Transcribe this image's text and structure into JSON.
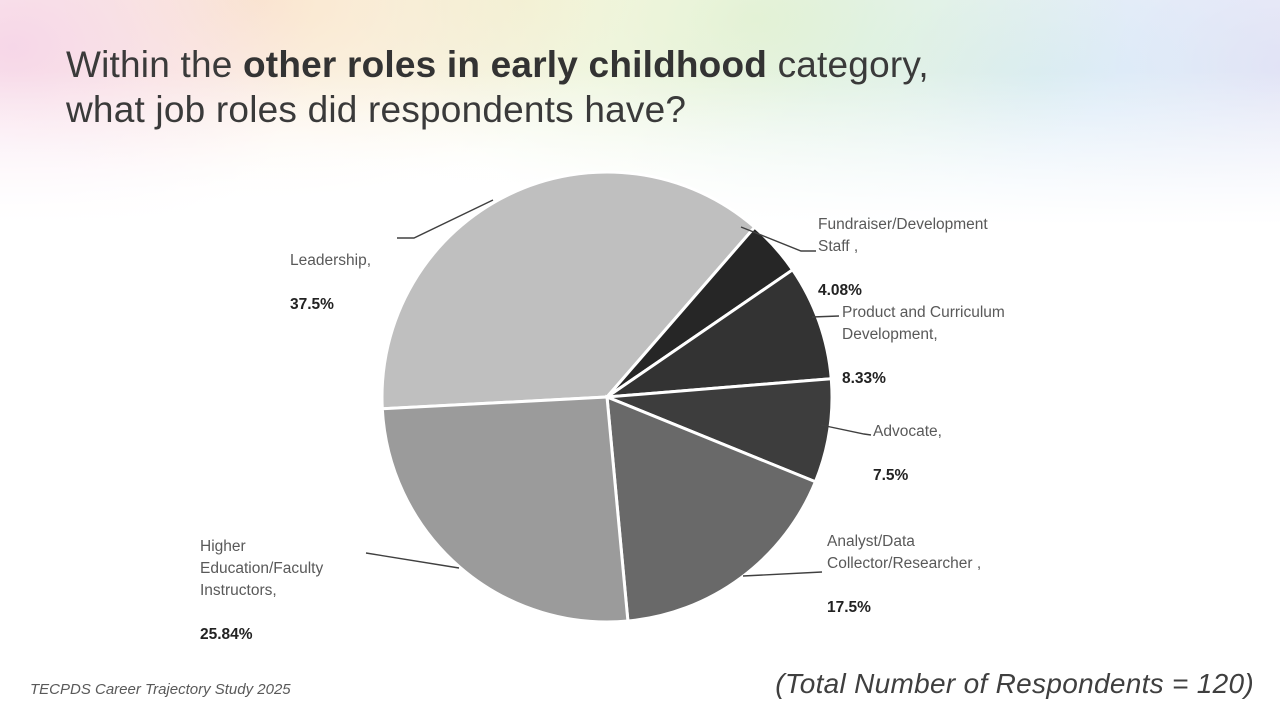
{
  "slide": {
    "title": {
      "prefix": "Within the ",
      "bold": "other roles in early childhood",
      "suffix": " category,",
      "line2": "what job roles did respondents have?"
    },
    "footer_left": "TECPDS Career Trajectory Study 2025",
    "footer_right": "(Total Number of Respondents = 120)"
  },
  "chart_data": {
    "type": "pie",
    "title": "Job roles within the other roles in early childhood category",
    "unit": "%",
    "total_respondents": 120,
    "start_angle_deg": 267,
    "direction": "clockwise",
    "legend_position": "outside-callouts",
    "slices": [
      {
        "label": "Leadership,",
        "display_value": "37.5%",
        "value": 37.5,
        "color": "#bfbfbf"
      },
      {
        "label": "Fundraiser/Development\nStaff ,",
        "display_value": "4.08%",
        "value": 4.08,
        "color": "#262626"
      },
      {
        "label": "Product and Curriculum\nDevelopment,",
        "display_value": "8.33%",
        "value": 8.33,
        "color": "#333333"
      },
      {
        "label": "Advocate,",
        "display_value": "7.5%",
        "value": 7.5,
        "color": "#3d3d3d"
      },
      {
        "label": "Analyst/Data\nCollector/Researcher ,",
        "display_value": "17.5%",
        "value": 17.5,
        "color": "#696969"
      },
      {
        "label": "Higher\nEducation/Faculty\nInstructors,",
        "display_value": "25.84%",
        "value": 25.84,
        "color": "#9b9b9b"
      }
    ]
  }
}
